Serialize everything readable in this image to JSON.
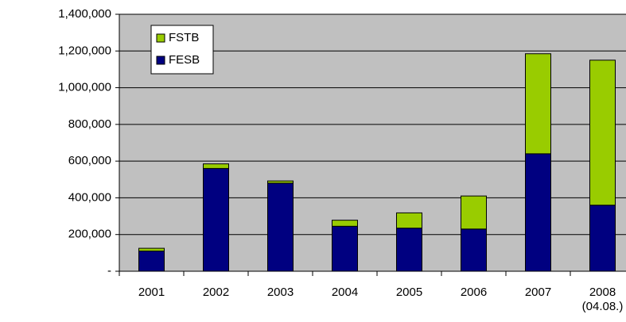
{
  "chart_data": {
    "type": "stacked_bar",
    "categories": [
      "2001",
      "2002",
      "2003",
      "2004",
      "2005",
      "2006",
      "2007",
      "2008 (04.08.)"
    ],
    "series": [
      {
        "name": "FESB",
        "color": "#000080",
        "values": [
          110000,
          560000,
          480000,
          245000,
          235000,
          230000,
          640000,
          360000
        ]
      },
      {
        "name": "FSTB",
        "color": "#99cc00",
        "values": [
          15000,
          25000,
          12000,
          33000,
          83000,
          180000,
          545000,
          790000
        ]
      }
    ],
    "ylim": [
      0,
      1400000
    ],
    "yticks": [
      {
        "value": 0,
        "label": "-"
      },
      {
        "value": 200000,
        "label": "200,000"
      },
      {
        "value": 400000,
        "label": "400,000"
      },
      {
        "value": 600000,
        "label": "600,000"
      },
      {
        "value": 800000,
        "label": "800,000"
      },
      {
        "value": 1000000,
        "label": "1,000,000"
      },
      {
        "value": 1200000,
        "label": "1,200,000"
      },
      {
        "value": 1400000,
        "label": "1,400,000"
      }
    ],
    "grid": true,
    "legend": "upper left",
    "plot_background": "#c0c0c0"
  }
}
